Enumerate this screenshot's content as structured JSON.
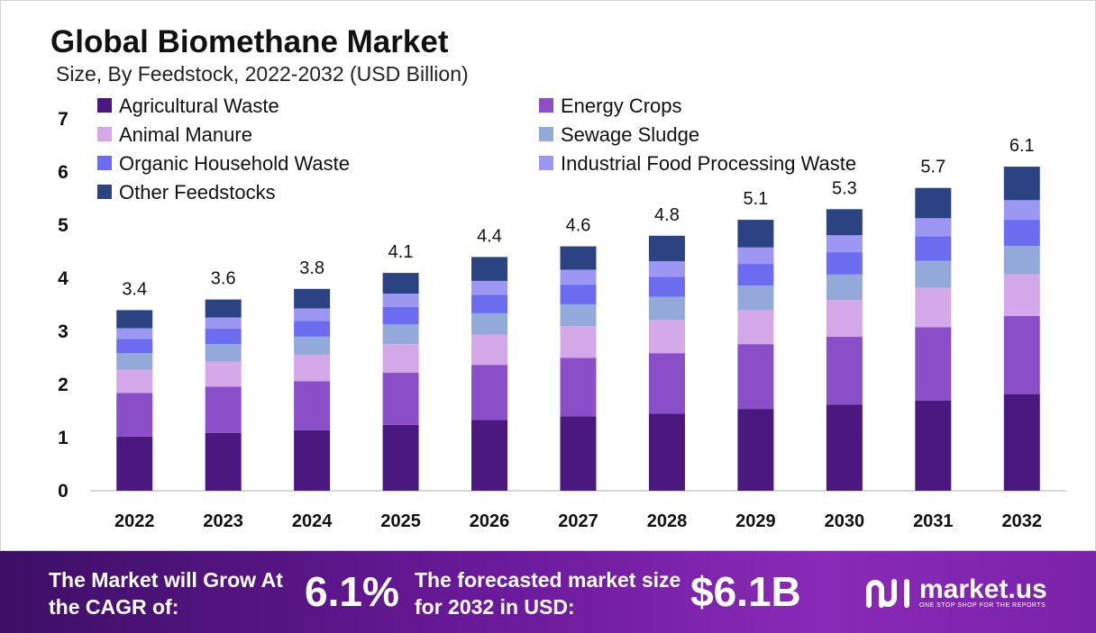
{
  "chart_data": {
    "type": "bar",
    "stacked": true,
    "title": "Global Biomethane Market",
    "subtitle": "Size, By Feedstock, 2022-2032 (USD Billion)",
    "categories": [
      "2022",
      "2023",
      "2024",
      "2025",
      "2026",
      "2027",
      "2028",
      "2029",
      "2030",
      "2031",
      "2032"
    ],
    "ylim": [
      0,
      7
    ],
    "yticks": [
      "0",
      "1",
      "2",
      "3",
      "4",
      "5",
      "6",
      "7"
    ],
    "grid": false,
    "legend_position": "top",
    "totals": [
      "3.4",
      "3.6",
      "3.8",
      "4.1",
      "4.4",
      "4.6",
      "4.8",
      "5.1",
      "5.3",
      "5.7",
      "6.1"
    ],
    "series": [
      {
        "name": "Agricultural Waste",
        "color": "#4b1880",
        "values": [
          1.02,
          1.09,
          1.14,
          1.24,
          1.33,
          1.4,
          1.45,
          1.54,
          1.62,
          1.7,
          1.82
        ]
      },
      {
        "name": "Energy Crops",
        "color": "#8a4fc8",
        "values": [
          0.82,
          0.87,
          0.92,
          0.98,
          1.04,
          1.1,
          1.14,
          1.22,
          1.28,
          1.38,
          1.47
        ]
      },
      {
        "name": "Animal Manure",
        "color": "#d4a8e8",
        "values": [
          0.44,
          0.47,
          0.5,
          0.54,
          0.57,
          0.6,
          0.63,
          0.64,
          0.69,
          0.74,
          0.78
        ]
      },
      {
        "name": "Sewage Sludge",
        "color": "#93a9d9",
        "values": [
          0.31,
          0.33,
          0.34,
          0.37,
          0.4,
          0.41,
          0.43,
          0.46,
          0.48,
          0.51,
          0.54
        ]
      },
      {
        "name": "Organic Household Waste",
        "color": "#6b6cf0",
        "values": [
          0.27,
          0.29,
          0.3,
          0.33,
          0.35,
          0.37,
          0.38,
          0.41,
          0.42,
          0.46,
          0.49
        ]
      },
      {
        "name": "Industrial Food Processing Waste",
        "color": "#9b97f3",
        "values": [
          0.2,
          0.21,
          0.23,
          0.25,
          0.26,
          0.28,
          0.29,
          0.31,
          0.32,
          0.34,
          0.37
        ]
      },
      {
        "name": "Other Feedstocks",
        "color": "#2b4382",
        "values": [
          0.34,
          0.34,
          0.37,
          0.39,
          0.45,
          0.44,
          0.48,
          0.52,
          0.49,
          0.57,
          0.63
        ]
      }
    ]
  },
  "banner": {
    "cagr_label": "The Market will Grow At the CAGR of:",
    "cagr_value": "6.1%",
    "size_label": "The forecasted market size for 2032 in USD:",
    "size_value": "$6.1B",
    "brand_name": "market.us",
    "brand_tagline": "ONE STOP SHOP FOR THE REPORTS"
  },
  "colors": {
    "axis": "#c8c8c8",
    "frame_border": "#d0d0d0"
  }
}
